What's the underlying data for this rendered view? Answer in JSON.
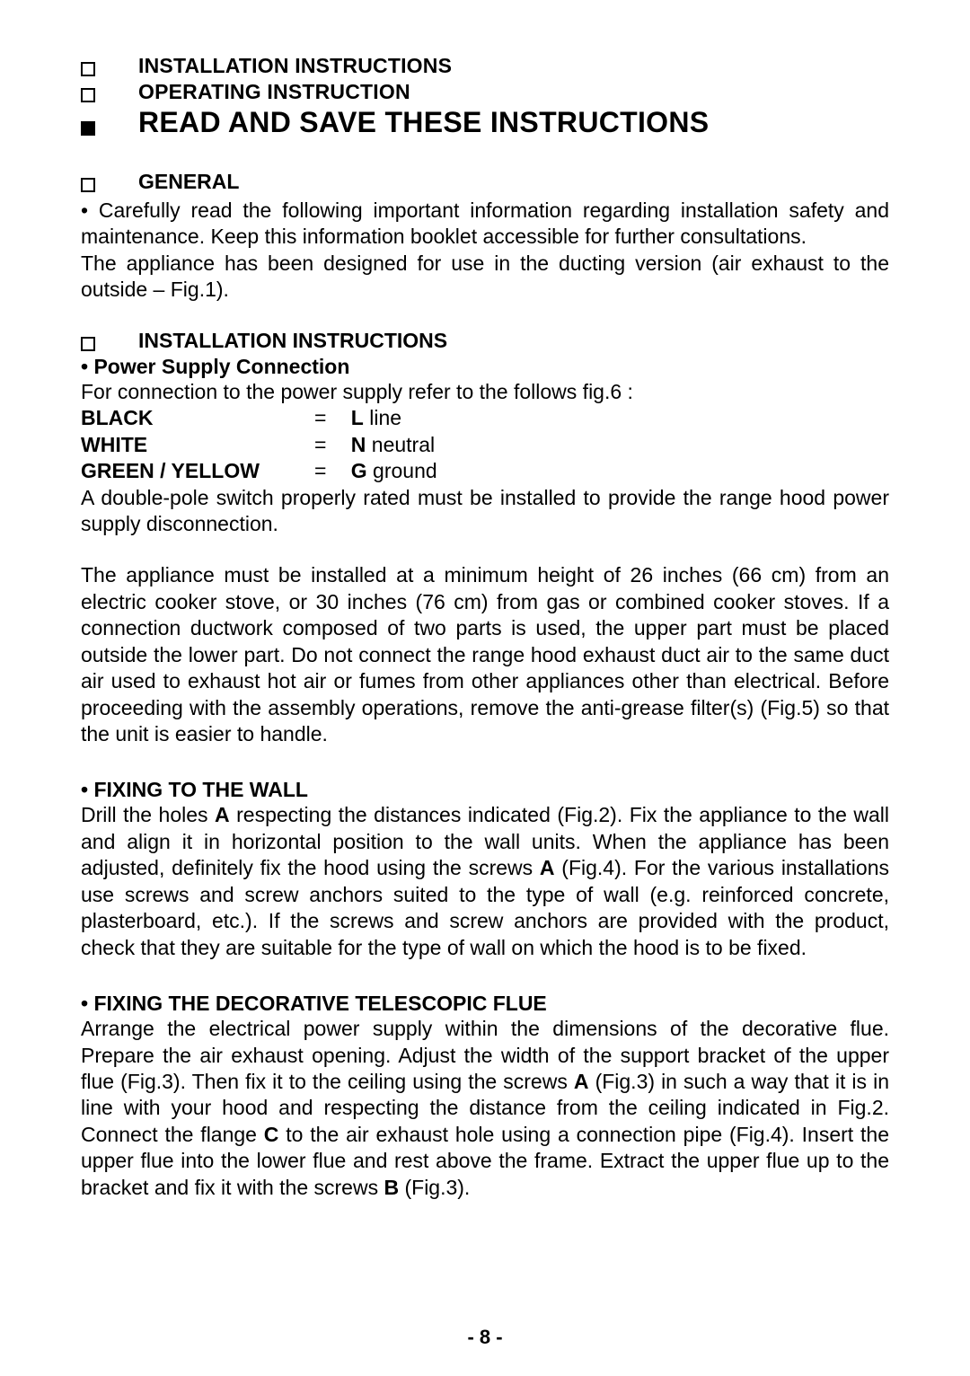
{
  "toc": {
    "items": [
      "INSTALLATION INSTRUCTIONS",
      "OPERATING INSTRUCTION",
      "READ AND SAVE THESE INSTRUCTIONS"
    ]
  },
  "general": {
    "heading": "GENERAL",
    "bullet_prefix": "• ",
    "para": "Carefully read the following important information regarding installation safety and maintenance. Keep this information booklet accessible for further consultations.\nThe appliance has been designed for use in the ducting version (air exhaust to the outside – Fig.1)."
  },
  "install": {
    "heading": "INSTALLATION INSTRUCTIONS",
    "power": {
      "subheading": "•  Power Supply Connection",
      "intro": "For connection to the power supply refer to the follows fig.6 :",
      "rows": [
        {
          "color": "BLACK",
          "letter": "L",
          "desc": " line"
        },
        {
          "color": "WHITE",
          "letter": "N",
          "desc": " neutral"
        },
        {
          "color": "GREEN / YELLOW",
          "letter": "G",
          "desc": " ground"
        }
      ],
      "after": "A double-pole switch properly rated must be installed to provide the range hood power supply disconnection."
    },
    "height_para": "The appliance must be installed at a minimum height of 26 inches (66 cm) from an electric cooker stove, or 30 inches (76 cm) from gas or combined cooker stoves. If a connection ductwork composed of two parts is used, the upper part must be placed outside the lower part. Do not connect the range hood exhaust duct air to the same duct air used to exhaust hot air or fumes from other appliances other than electrical. Before proceeding with the assembly operations, remove the anti-grease filter(s) (Fig.5) so that the unit is easier to handle.",
    "wall": {
      "subheading": "• FIXING TO THE WALL",
      "para": "Drill the holes A respecting the distances indicated (Fig.2). Fix the appliance to the wall and align it in horizontal position to the wall units. When the appliance has been adjusted, definitely fix the hood using the screws A (Fig.4). For the various installations use screws and screw anchors suited to the type of wall (e.g. reinforced concrete, plasterboard, etc.). If the screws and screw anchors are provided with the product, check that they are suitable for the type of wall on which the hood is to be fixed."
    },
    "flue": {
      "subheading": "• FIXING THE DECORATIVE TELESCOPIC FLUE",
      "para": "Arrange the electrical power supply within the dimensions of the decorative flue. Prepare the air exhaust opening. Adjust the width of the support bracket of the upper flue (Fig.3). Then fix it to the ceiling using the screws A (Fig.3) in such a way that it is in line with your hood and respecting the distance from the ceiling indicated in Fig.2. Connect the flange C to the air exhaust hole using a connection pipe (Fig.4). Insert the upper flue into the lower flue and rest above the frame. Extract the upper flue up to the bracket and fix it with the screws B (Fig.3)."
    }
  },
  "page_number": "- 8 -"
}
